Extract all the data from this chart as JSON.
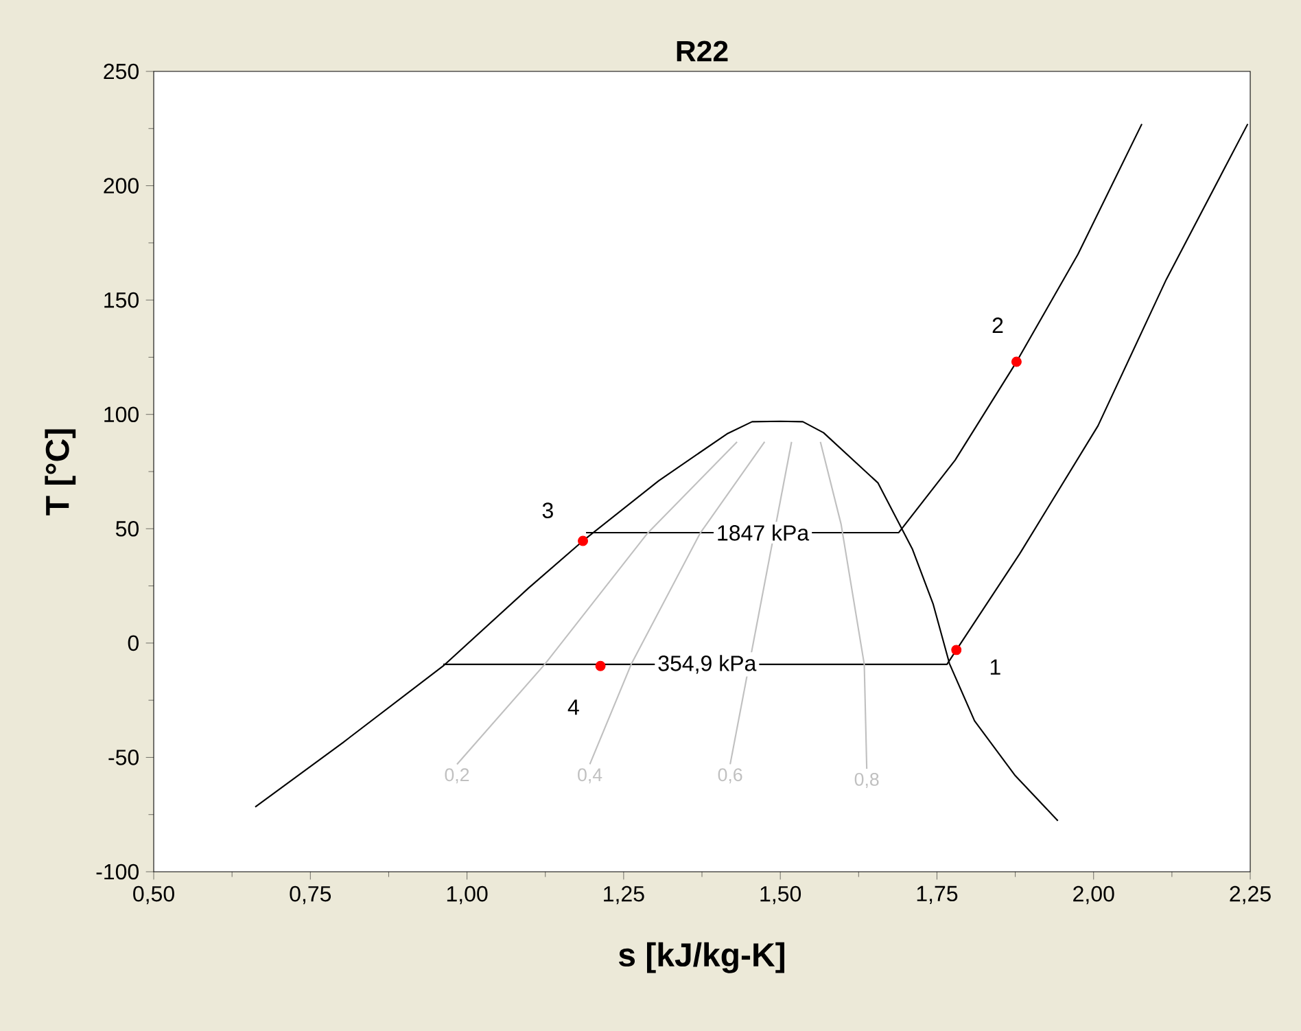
{
  "chart_data": {
    "type": "line",
    "title": "R22",
    "xlabel": "s [kJ/kg-K]",
    "ylabel": "T [°C]",
    "xlim": [
      0.5,
      2.25
    ],
    "ylim": [
      -100,
      250
    ],
    "xticks": [
      {
        "value": 0.5,
        "label": "0,50"
      },
      {
        "value": 0.75,
        "label": "0,75"
      },
      {
        "value": 1.0,
        "label": "1,00"
      },
      {
        "value": 1.25,
        "label": "1,25"
      },
      {
        "value": 1.5,
        "label": "1,50"
      },
      {
        "value": 1.75,
        "label": "1,75"
      },
      {
        "value": 2.0,
        "label": "2,00"
      },
      {
        "value": 2.25,
        "label": "2,25"
      }
    ],
    "yticks": [
      -100,
      -50,
      0,
      50,
      100,
      150,
      200,
      250
    ],
    "grid": false,
    "series": [
      {
        "color": "#000000",
        "x": [
          0.662,
          0.802,
          0.962,
          1.098,
          1.185,
          1.306,
          1.415,
          1.455,
          1.5,
          1.536,
          1.569,
          1.656,
          1.711,
          1.744,
          1.77,
          1.81,
          1.875,
          1.943
        ],
        "values": [
          -71.7,
          -43.5,
          -10,
          24,
          44.7,
          71,
          91.5,
          96.8,
          97,
          96.8,
          92,
          70,
          41,
          17,
          -9,
          -34,
          -58,
          -77.7
        ]
      },
      {
        "color": "#000000",
        "x": [
          1.19,
          1.689,
          1.779,
          1.877,
          1.975,
          2.077
        ],
        "values": [
          48.3,
          48.3,
          80,
          123,
          170,
          227
        ]
      },
      {
        "color": "#000000",
        "x": [
          0.962,
          1.766,
          1.781,
          1.882,
          2.007,
          2.116,
          2.246
        ],
        "values": [
          -9.3,
          -9.3,
          -3,
          39,
          95,
          159,
          227
        ]
      },
      {
        "name": "0,2",
        "color": "#c0c0c0",
        "x": [
          0.984,
          1.124,
          1.288,
          1.431
        ],
        "values": [
          -53,
          -9.3,
          48,
          88
        ]
      },
      {
        "name": "0,4",
        "color": "#c0c0c0",
        "x": [
          1.196,
          1.262,
          1.372,
          1.475
        ],
        "values": [
          -53,
          -9.3,
          48,
          88
        ]
      },
      {
        "name": "0,6",
        "color": "#c0c0c0",
        "x": [
          1.42,
          1.437,
          1.481,
          1.518
        ],
        "values": [
          -53,
          null,
          null,
          88
        ]
      },
      {
        "name": "0,8",
        "color": "#c0c0c0",
        "x": [
          1.638,
          1.634,
          1.597,
          1.564
        ],
        "values": [
          -55,
          -9.3,
          52,
          88
        ]
      },
      {
        "type": "scatter",
        "color": "#ff0000",
        "x": [
          1.781,
          1.877,
          1.185,
          1.213
        ],
        "values": [
          -3,
          123,
          44.7,
          -10
        ]
      }
    ],
    "annotations": [
      {
        "text": "1847 kPa",
        "x": 1.472,
        "y": 48.3
      },
      {
        "text": "354,9 kPa",
        "x": 1.383,
        "y": -9.3
      },
      {
        "text": "1",
        "x": 1.843,
        "y": -10.5
      },
      {
        "text": "2",
        "x": 1.847,
        "y": 139
      },
      {
        "text": "3",
        "x": 1.129,
        "y": 58
      },
      {
        "text": "4",
        "x": 1.17,
        "y": -28
      }
    ]
  }
}
